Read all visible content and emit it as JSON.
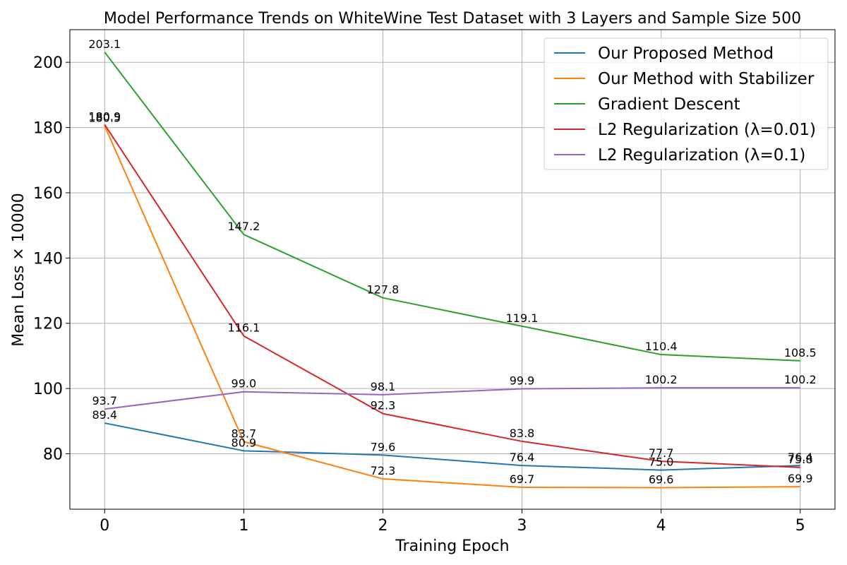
{
  "chart_data": {
    "type": "line",
    "title": "Model Performance Trends on WhiteWine Test Dataset with 3 Layers and Sample Size 500",
    "xlabel": "Training Epoch",
    "ylabel": "Mean Loss × 10000",
    "x": [
      0,
      1,
      2,
      3,
      4,
      5
    ],
    "xlim": [
      -0.25,
      5.25
    ],
    "ylim": [
      63,
      210
    ],
    "xticks": [
      "0",
      "1",
      "2",
      "3",
      "4",
      "5"
    ],
    "yticks": [
      80,
      100,
      120,
      140,
      160,
      180,
      200
    ],
    "grid": true,
    "legend_position": "top-right",
    "series": [
      {
        "name": "Our Proposed Method",
        "color": "#1f77b4",
        "values": [
          89.4,
          80.9,
          79.6,
          76.4,
          75.0,
          76.4
        ]
      },
      {
        "name": "Our Method with Stabilizer",
        "color": "#ff7f0e",
        "values": [
          180.5,
          83.7,
          72.3,
          69.7,
          69.6,
          69.9
        ]
      },
      {
        "name": "Gradient Descent",
        "color": "#2ca02c",
        "values": [
          203.1,
          147.2,
          127.8,
          119.1,
          110.4,
          108.5
        ]
      },
      {
        "name": "L2 Regularization (λ=0.01)",
        "color": "#d62728",
        "values": [
          180.9,
          116.1,
          92.3,
          83.8,
          77.7,
          75.8
        ]
      },
      {
        "name": "L2 Regularization (λ=0.1)",
        "color": "#9467bd",
        "values": [
          93.7,
          99.0,
          98.1,
          99.9,
          100.2,
          100.2
        ]
      }
    ]
  }
}
